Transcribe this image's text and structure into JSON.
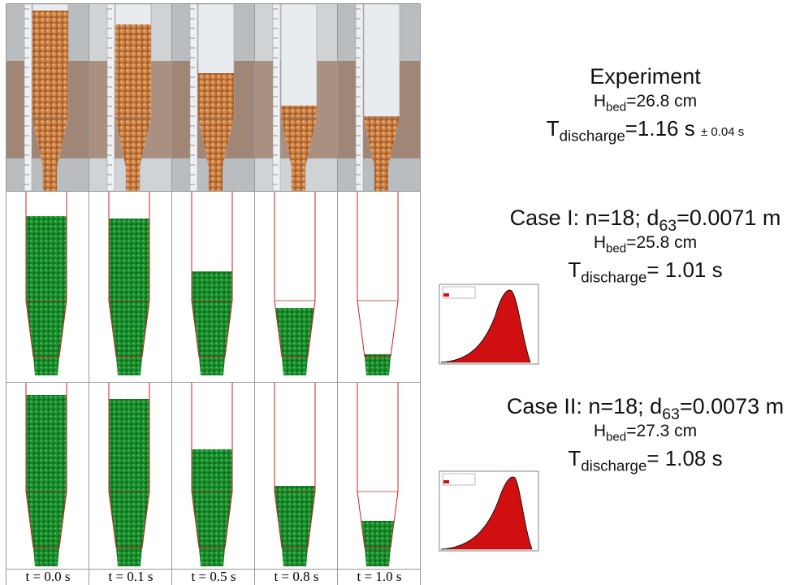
{
  "experiment": {
    "title": "Experiment",
    "h_bed": {
      "symbol": "H",
      "sub": "bed",
      "text": "=26.8 cm"
    },
    "t_discharge": {
      "symbol": "T",
      "sub": "discharge",
      "text": "=1.16 s",
      "error": "± 0.04 s"
    }
  },
  "cases": [
    {
      "title": {
        "text": "Case I: n=18; d",
        "sub": "63",
        "rest": "=0.0071 m"
      },
      "h_bed": {
        "symbol": "H",
        "sub": "bed",
        "text": "=25.8 cm"
      },
      "t_discharge": {
        "symbol": "T",
        "sub": "discharge",
        "text": "= 1.01 s"
      }
    },
    {
      "title": {
        "text": "Case II: n=18; d",
        "sub": "63",
        "rest": "=0.0073 m"
      },
      "h_bed": {
        "symbol": "H",
        "sub": "bed",
        "text": "=27.3 cm"
      },
      "t_discharge": {
        "symbol": "T",
        "sub": "discharge",
        "text": "= 1.08 s"
      }
    }
  ],
  "time_labels": [
    "t = 0.0 s",
    "t = 0.1 s",
    "t = 0.5 s",
    "t = 0.8 s",
    "t = 1.0 s"
  ]
}
